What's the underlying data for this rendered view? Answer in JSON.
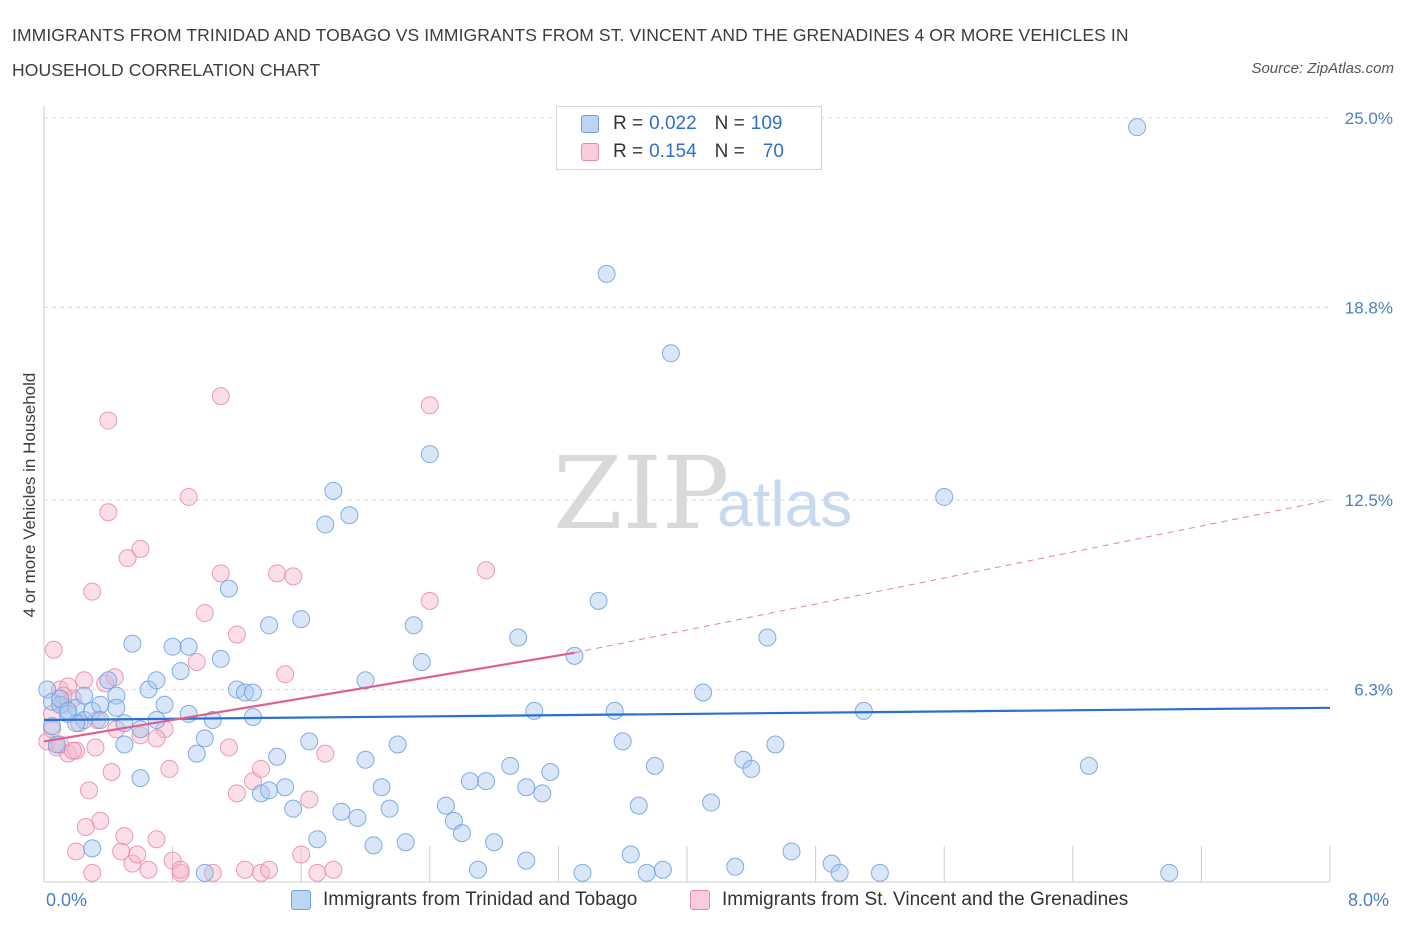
{
  "header": {
    "title": "IMMIGRANTS FROM TRINIDAD AND TOBAGO VS IMMIGRANTS FROM ST. VINCENT AND THE GRENADINES 4 OR MORE VEHICLES IN HOUSEHOLD CORRELATION CHART",
    "source": "Source: ZipAtlas.com"
  },
  "watermark": {
    "zip": "ZIP",
    "atlas": "atlas"
  },
  "legend": {
    "rows": [
      {
        "r_label": "R = ",
        "r_value": "0.022",
        "n_label": "N = ",
        "n_value": "109"
      },
      {
        "r_label": "R = ",
        "r_value": "0.154",
        "n_label": "N = ",
        "n_value": "70"
      }
    ]
  },
  "colors": {
    "blue_fill": "#a9c8f0",
    "blue_stroke": "#6f9fe0",
    "blue_line": "#2b6fcf",
    "pink_fill": "#f5b8cc",
    "pink_stroke": "#e98aa8",
    "pink_line": "#e0608c",
    "grid": "#dddddd",
    "tick_text": "#4a7fc4"
  },
  "chart_data": {
    "type": "scatter",
    "title": "IMMIGRANTS FROM TRINIDAD AND TOBAGO VS IMMIGRANTS FROM ST. VINCENT AND THE GRENADINES 4 OR MORE VEHICLES IN HOUSEHOLD CORRELATION CHART",
    "xlabel": "",
    "ylabel": "4 or more Vehicles in Household",
    "xlim": [
      0,
      8
    ],
    "ylim": [
      0,
      25
    ],
    "x_tick_labels": [
      "0.0%",
      "8.0%"
    ],
    "y_ticks": [
      6.3,
      12.5,
      18.8,
      25.0
    ],
    "y_tick_labels": [
      "6.3%",
      "12.5%",
      "18.8%",
      "25.0%"
    ],
    "grid": true,
    "legend_position": "top-center",
    "series": [
      {
        "name": "Immigrants from Trinidad and Tobago",
        "color": "#a9c8f0",
        "R": 0.022,
        "N": 109,
        "trend": {
          "x": [
            0,
            8.0
          ],
          "y": [
            5.3,
            5.7
          ],
          "style": "solid"
        },
        "points": [
          [
            0.02,
            6.3
          ],
          [
            0.05,
            5.9
          ],
          [
            0.1,
            5.8
          ],
          [
            0.15,
            5.5
          ],
          [
            0.2,
            5.7
          ],
          [
            0.25,
            5.3
          ],
          [
            0.3,
            5.6
          ],
          [
            0.08,
            4.5
          ],
          [
            0.35,
            5.8
          ],
          [
            0.4,
            6.6
          ],
          [
            0.45,
            6.1
          ],
          [
            0.5,
            4.5
          ],
          [
            0.55,
            7.8
          ],
          [
            0.6,
            5.0
          ],
          [
            0.65,
            6.3
          ],
          [
            0.7,
            6.6
          ],
          [
            0.75,
            5.8
          ],
          [
            0.8,
            7.7
          ],
          [
            0.85,
            6.9
          ],
          [
            0.9,
            5.5
          ],
          [
            0.95,
            4.2
          ],
          [
            1.0,
            4.7
          ],
          [
            1.05,
            5.3
          ],
          [
            1.1,
            7.3
          ],
          [
            1.15,
            9.6
          ],
          [
            1.2,
            6.3
          ],
          [
            1.25,
            6.2
          ],
          [
            1.3,
            5.4
          ],
          [
            1.35,
            2.9
          ],
          [
            1.4,
            8.4
          ],
          [
            1.45,
            4.1
          ],
          [
            1.5,
            3.1
          ],
          [
            1.55,
            2.4
          ],
          [
            1.6,
            8.6
          ],
          [
            1.65,
            4.6
          ],
          [
            1.7,
            1.4
          ],
          [
            1.75,
            11.7
          ],
          [
            1.8,
            12.8
          ],
          [
            1.85,
            2.3
          ],
          [
            1.9,
            12.0
          ],
          [
            1.95,
            2.1
          ],
          [
            2.0,
            4.0
          ],
          [
            2.05,
            1.2
          ],
          [
            2.1,
            3.1
          ],
          [
            2.15,
            2.4
          ],
          [
            2.2,
            4.5
          ],
          [
            2.3,
            8.4
          ],
          [
            2.35,
            7.2
          ],
          [
            2.4,
            14.0
          ],
          [
            2.5,
            2.5
          ],
          [
            2.55,
            2.0
          ],
          [
            2.6,
            1.6
          ],
          [
            2.65,
            3.3
          ],
          [
            2.7,
            0.4
          ],
          [
            2.75,
            3.3
          ],
          [
            2.8,
            1.3
          ],
          [
            2.9,
            3.8
          ],
          [
            2.95,
            8.0
          ],
          [
            3.0,
            3.1
          ],
          [
            3.05,
            5.6
          ],
          [
            3.1,
            2.9
          ],
          [
            3.15,
            3.6
          ],
          [
            3.3,
            7.4
          ],
          [
            3.35,
            0.3
          ],
          [
            3.45,
            9.2
          ],
          [
            3.5,
            19.9
          ],
          [
            3.55,
            5.6
          ],
          [
            3.6,
            4.6
          ],
          [
            3.65,
            0.9
          ],
          [
            3.7,
            2.5
          ],
          [
            3.75,
            0.3
          ],
          [
            3.8,
            3.8
          ],
          [
            3.85,
            0.4
          ],
          [
            3.9,
            17.3
          ],
          [
            4.1,
            6.2
          ],
          [
            4.15,
            2.6
          ],
          [
            4.3,
            0.5
          ],
          [
            4.35,
            4.0
          ],
          [
            4.4,
            3.7
          ],
          [
            4.5,
            8.0
          ],
          [
            4.55,
            4.5
          ],
          [
            4.65,
            1.0
          ],
          [
            4.9,
            0.6
          ],
          [
            4.95,
            0.3
          ],
          [
            5.1,
            5.6
          ],
          [
            5.2,
            0.3
          ],
          [
            5.6,
            12.6
          ],
          [
            6.5,
            3.8
          ],
          [
            6.8,
            24.7
          ],
          [
            7.0,
            0.3
          ],
          [
            2.25,
            1.3
          ],
          [
            1.0,
            0.3
          ],
          [
            0.3,
            1.1
          ],
          [
            0.6,
            3.4
          ],
          [
            0.7,
            5.3
          ],
          [
            1.4,
            3.0
          ],
          [
            0.9,
            7.7
          ],
          [
            2.0,
            6.6
          ],
          [
            1.3,
            6.2
          ],
          [
            0.45,
            5.7
          ],
          [
            0.2,
            5.2
          ],
          [
            0.1,
            6.0
          ],
          [
            0.5,
            5.2
          ],
          [
            0.35,
            5.3
          ],
          [
            0.25,
            6.1
          ],
          [
            0.15,
            5.6
          ],
          [
            3.0,
            0.7
          ],
          [
            0.05,
            5.1
          ]
        ]
      },
      {
        "name": "Immigrants from St. Vincent and the Grenadines",
        "color": "#f5b8cc",
        "R": 0.154,
        "N": 70,
        "trend": {
          "x": [
            0,
            3.3
          ],
          "y": [
            4.6,
            7.5
          ],
          "style": "solid",
          "extended_to": [
            8.0,
            12.5
          ],
          "extended_style": "dashed"
        },
        "points": [
          [
            0.02,
            4.6
          ],
          [
            0.05,
            5.0
          ],
          [
            0.08,
            4.4
          ],
          [
            0.1,
            6.3
          ],
          [
            0.12,
            5.8
          ],
          [
            0.15,
            4.2
          ],
          [
            0.18,
            6.0
          ],
          [
            0.2,
            4.3
          ],
          [
            0.22,
            5.2
          ],
          [
            0.25,
            6.6
          ],
          [
            0.28,
            3.0
          ],
          [
            0.3,
            9.5
          ],
          [
            0.32,
            4.4
          ],
          [
            0.35,
            2.0
          ],
          [
            0.38,
            6.5
          ],
          [
            0.4,
            12.1
          ],
          [
            0.42,
            3.6
          ],
          [
            0.45,
            5.0
          ],
          [
            0.48,
            1.0
          ],
          [
            0.5,
            1.5
          ],
          [
            0.52,
            10.6
          ],
          [
            0.55,
            0.6
          ],
          [
            0.58,
            0.9
          ],
          [
            0.6,
            10.9
          ],
          [
            0.65,
            0.4
          ],
          [
            0.7,
            1.4
          ],
          [
            0.75,
            5.0
          ],
          [
            0.78,
            3.7
          ],
          [
            0.8,
            0.7
          ],
          [
            0.85,
            0.3
          ],
          [
            0.9,
            12.6
          ],
          [
            0.95,
            7.2
          ],
          [
            1.0,
            8.8
          ],
          [
            1.05,
            0.3
          ],
          [
            1.1,
            10.1
          ],
          [
            1.15,
            4.4
          ],
          [
            1.2,
            8.1
          ],
          [
            1.25,
            0.4
          ],
          [
            1.3,
            3.3
          ],
          [
            1.35,
            0.3
          ],
          [
            1.4,
            0.4
          ],
          [
            1.45,
            10.1
          ],
          [
            1.5,
            6.8
          ],
          [
            1.55,
            10.0
          ],
          [
            1.6,
            0.9
          ],
          [
            1.65,
            2.7
          ],
          [
            1.7,
            0.3
          ],
          [
            1.75,
            4.2
          ],
          [
            1.8,
            0.4
          ],
          [
            0.4,
            15.1
          ],
          [
            1.1,
            15.9
          ],
          [
            2.4,
            15.6
          ],
          [
            2.4,
            9.2
          ],
          [
            2.75,
            10.2
          ],
          [
            0.26,
            1.8
          ],
          [
            0.1,
            4.5
          ],
          [
            0.06,
            7.6
          ],
          [
            0.15,
            6.4
          ],
          [
            0.33,
            5.3
          ],
          [
            0.44,
            6.7
          ],
          [
            0.6,
            4.8
          ],
          [
            0.7,
            4.7
          ],
          [
            0.85,
            0.4
          ],
          [
            1.2,
            2.9
          ],
          [
            1.35,
            3.7
          ],
          [
            0.05,
            5.5
          ],
          [
            0.12,
            6.1
          ],
          [
            0.2,
            1.0
          ],
          [
            0.3,
            0.3
          ],
          [
            0.18,
            4.3
          ]
        ]
      }
    ]
  },
  "bottom_legend": {
    "items": [
      "Immigrants from Trinidad and Tobago",
      "Immigrants from St. Vincent and the Grenadines"
    ]
  },
  "x_axis": {
    "min_label": "0.0%",
    "max_label": "8.0%"
  }
}
